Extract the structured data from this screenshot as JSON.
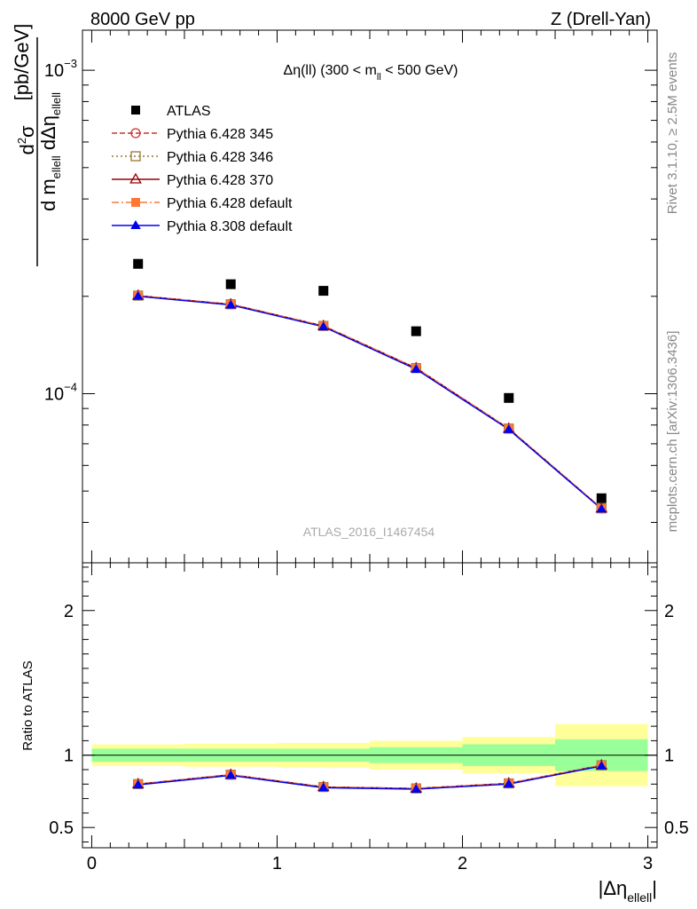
{
  "header": {
    "left": "8000 GeV pp",
    "right": "Z (Drell-Yan)"
  },
  "side_text": {
    "rivet": "Rivet 3.1.10, ≥ 2.5M events",
    "mcplots": "mcplots.cern.ch [arXiv:1306.3436]"
  },
  "watermark": "ATLAS_2016_I1467454",
  "colors": {
    "band_yellow": "#ffff99",
    "band_green": "#99ff99",
    "atlas": "#000000",
    "p345": "#cc3333",
    "p346": "#997733",
    "p370": "#990000",
    "p6def": "#ff7733",
    "p8def": "#0000ee"
  },
  "chart_data": [
    {
      "type": "scatter",
      "panel": "main",
      "title_prefix": "Δη(ll) (300 < m",
      "title_sub": "ll",
      "title_suffix": " < 500 GeV)",
      "ylabel": "d²σ / d m_ellell dΔη_ellell [pb/GeV]",
      "ylabel_parts": {
        "num_base": "d",
        "num_sup": "2",
        "num_tail": "σ",
        "den_1": "d m",
        "den_sub_1": "ellell",
        "den_2": " dΔη",
        "den_sub_2": "ellell",
        "unit": "[pb/GeV]"
      },
      "yscale": "log",
      "ylim": [
        3e-05,
        0.00133
      ],
      "xlim": [
        -0.05,
        3.05
      ],
      "y_tick_labels": [
        {
          "value": 0.0001,
          "base": "10",
          "exp": "−4"
        },
        {
          "value": 0.001,
          "base": "10",
          "exp": "−3"
        }
      ],
      "x": [
        0.25,
        0.75,
        1.25,
        1.75,
        2.25,
        2.75
      ],
      "series": [
        {
          "name": "ATLAS",
          "key": "atlas",
          "marker": "square",
          "line": false,
          "values": [
            0.000252,
            0.000218,
            0.000208,
            0.000156,
            9.7e-05,
            4.75e-05
          ]
        },
        {
          "name": "Pythia 6.428 345",
          "key": "p345",
          "marker": "circle-open",
          "line": "dashed",
          "values": [
            0.000201,
            0.000189,
            0.000162,
            0.00012,
            7.8e-05,
            4.42e-05
          ]
        },
        {
          "name": "Pythia 6.428 346",
          "key": "p346",
          "marker": "square-open",
          "line": "dotted",
          "values": [
            0.000201,
            0.000189,
            0.000162,
            0.00012,
            7.8e-05,
            4.42e-05
          ]
        },
        {
          "name": "Pythia 6.428 370",
          "key": "p370",
          "marker": "triangle-open",
          "line": "solid",
          "values": [
            0.000201,
            0.000189,
            0.000162,
            0.00012,
            7.8e-05,
            4.42e-05
          ]
        },
        {
          "name": "Pythia 6.428 default",
          "key": "p6def",
          "marker": "square",
          "line": "dashdot",
          "values": [
            0.000201,
            0.000189,
            0.000162,
            0.00012,
            7.8e-05,
            4.42e-05
          ]
        },
        {
          "name": "Pythia 8.308 default",
          "key": "p8def",
          "marker": "triangle",
          "line": "solid",
          "values": [
            0.0002,
            0.000188,
            0.000161,
            0.000119,
            7.75e-05,
            4.4e-05
          ]
        }
      ]
    },
    {
      "type": "line",
      "panel": "ratio",
      "ylabel": "Ratio to ATLAS",
      "xlabel_main": "|Δη",
      "xlabel_sub": "ellell",
      "xlabel_end": "|",
      "ylim": [
        0.36,
        2.33
      ],
      "xlim": [
        -0.05,
        3.05
      ],
      "x_ticks": [
        0,
        1,
        2,
        3
      ],
      "x_tick_labels": [
        "0",
        "1",
        "2",
        "3"
      ],
      "y_ticks": [
        0.5,
        1,
        2
      ],
      "y_tick_labels": [
        "0.5",
        "1",
        "2"
      ],
      "bins": [
        [
          0,
          0.5
        ],
        [
          0.5,
          1.0
        ],
        [
          1.0,
          1.5
        ],
        [
          1.5,
          2.0
        ],
        [
          2.0,
          2.5
        ],
        [
          2.5,
          3.0
        ]
      ],
      "band_green": [
        [
          0.955,
          1.045
        ],
        [
          0.955,
          1.045
        ],
        [
          0.955,
          1.045
        ],
        [
          0.945,
          1.055
        ],
        [
          0.925,
          1.075
        ],
        [
          0.89,
          1.11
        ]
      ],
      "band_yellow": [
        [
          0.925,
          1.075
        ],
        [
          0.92,
          1.08
        ],
        [
          0.915,
          1.085
        ],
        [
          0.9,
          1.1
        ],
        [
          0.875,
          1.125
        ],
        [
          0.785,
          1.215
        ]
      ],
      "x": [
        0.25,
        0.75,
        1.25,
        1.75,
        2.25,
        2.75
      ],
      "series": [
        {
          "key": "p345",
          "values": [
            0.8,
            0.865,
            0.78,
            0.77,
            0.805,
            0.93
          ]
        },
        {
          "key": "p346",
          "values": [
            0.8,
            0.865,
            0.78,
            0.77,
            0.805,
            0.93
          ]
        },
        {
          "key": "p370",
          "values": [
            0.8,
            0.865,
            0.78,
            0.77,
            0.805,
            0.93
          ]
        },
        {
          "key": "p6def",
          "values": [
            0.8,
            0.865,
            0.78,
            0.77,
            0.805,
            0.93
          ]
        },
        {
          "key": "p8def",
          "values": [
            0.795,
            0.86,
            0.775,
            0.765,
            0.8,
            0.925
          ]
        }
      ]
    }
  ]
}
